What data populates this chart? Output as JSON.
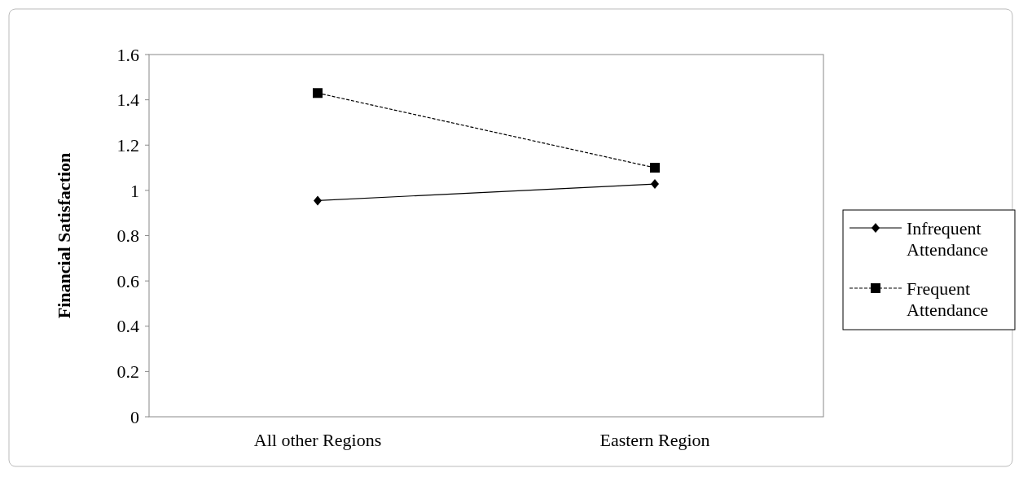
{
  "chart_data": {
    "type": "line",
    "ylabel": "Financial Satisfaction",
    "categories": [
      "All other Regions",
      "Eastern Region"
    ],
    "ylim": [
      0,
      1.6
    ],
    "yticks": [
      0,
      0.2,
      0.4,
      0.6,
      0.8,
      1,
      1.2,
      1.4,
      1.6
    ],
    "grid": false,
    "legend": "right",
    "series": [
      {
        "name": "Infrequent Attendance",
        "color": "#000000",
        "values": [
          0.955,
          1.028
        ],
        "marker": "diamond",
        "line_style": "solid"
      },
      {
        "name": "Frequent Attendance",
        "color": "#000000",
        "values": [
          1.43,
          1.1
        ],
        "marker": "square",
        "line_style": "dashed"
      }
    ]
  }
}
